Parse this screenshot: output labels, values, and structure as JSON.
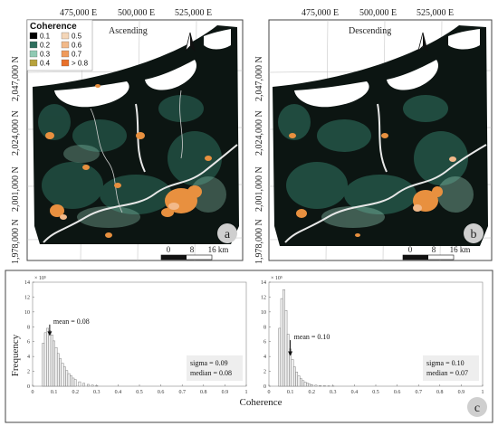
{
  "maps": [
    {
      "id": "a",
      "title": "Ascending",
      "panel_letter": "a",
      "x_ticks": [
        "475,000 E",
        "500,000 E",
        "525,000 E"
      ],
      "y_ticks": [
        "2,047,000 N",
        "2,024,000 N",
        "2,001,000 N",
        "1,978,000 N"
      ],
      "scale_labels": [
        "0",
        "8",
        "16 km"
      ]
    },
    {
      "id": "b",
      "title": "Descending",
      "panel_letter": "b",
      "x_ticks": [
        "475,000 E",
        "500,000 E",
        "525,000 E"
      ],
      "y_ticks": [
        "2,047,000 N",
        "2,024,000 N",
        "2,001,000 N",
        "1,978,000 N"
      ],
      "scale_labels": [
        "0",
        "8",
        "16 km"
      ]
    }
  ],
  "legend": {
    "title": "Coherence",
    "items": [
      {
        "label": "0.1",
        "color": "#000000"
      },
      {
        "label": "0.5",
        "color": "#f4d6b8"
      },
      {
        "label": "0.2",
        "color": "#2e6f5e"
      },
      {
        "label": "0.6",
        "color": "#f2b98a"
      },
      {
        "label": "0.3",
        "color": "#8fc9b3"
      },
      {
        "label": "0.7",
        "color": "#ef9a5a"
      },
      {
        "label": "0.4",
        "color": "#b7a23c"
      },
      {
        "label": "> 0.8",
        "color": "#e8702a"
      }
    ]
  },
  "colors": {
    "map_dark": "#0c1512",
    "coherence_green": "#2e6f5e",
    "coherence_orange": "#e8903f",
    "panel_badge": "#cfcfcf"
  },
  "chart_data": [
    {
      "type": "bar",
      "panel": "c-left",
      "ylabel": "Frequency",
      "y_exponent": "× 10⁵",
      "xlim": [
        0,
        1
      ],
      "ylim": [
        0,
        14
      ],
      "x_ticks": [
        "0",
        "0.1",
        "0.2",
        "0.3",
        "0.4",
        "0.5",
        "0.6",
        "0.7",
        "0.8",
        "0.9",
        "1"
      ],
      "y_ticks": [
        "0",
        "2",
        "4",
        "6",
        "8",
        "10",
        "12",
        "14"
      ],
      "bin_centers": [
        0.05,
        0.06,
        0.07,
        0.08,
        0.09,
        0.1,
        0.11,
        0.12,
        0.13,
        0.14,
        0.15,
        0.16,
        0.17,
        0.18,
        0.19,
        0.2,
        0.22,
        0.24,
        0.26,
        0.28,
        0.3
      ],
      "values": [
        5.8,
        7.2,
        7.8,
        7.5,
        6.9,
        6.1,
        5.2,
        4.4,
        3.7,
        3.1,
        2.6,
        2.1,
        1.7,
        1.4,
        1.1,
        0.9,
        0.6,
        0.4,
        0.25,
        0.15,
        0.08
      ],
      "mean_label": "mean = 0.08",
      "mean_value": 0.08,
      "stats": [
        "sigma =  0.09",
        "median = 0.08"
      ]
    },
    {
      "type": "bar",
      "panel": "c-right",
      "y_exponent": "× 10⁵",
      "xlim": [
        0,
        1
      ],
      "ylim": [
        0,
        14
      ],
      "x_ticks": [
        "0",
        "0.1",
        "0.2",
        "0.3",
        "0.4",
        "0.5",
        "0.6",
        "0.7",
        "0.8",
        "0.9",
        "1"
      ],
      "y_ticks": [
        "0",
        "2",
        "4",
        "6",
        "8",
        "10",
        "12",
        "14"
      ],
      "bin_centers": [
        0.05,
        0.06,
        0.07,
        0.08,
        0.09,
        0.1,
        0.11,
        0.12,
        0.13,
        0.14,
        0.15,
        0.16,
        0.17,
        0.18,
        0.19,
        0.2,
        0.22,
        0.24,
        0.26,
        0.28,
        0.3
      ],
      "values": [
        7.8,
        11.8,
        13.0,
        10.2,
        7.0,
        5.0,
        3.6,
        2.6,
        1.9,
        1.4,
        1.0,
        0.75,
        0.55,
        0.4,
        0.3,
        0.22,
        0.14,
        0.09,
        0.06,
        0.04,
        0.02
      ],
      "mean_label": "mean = 0.10",
      "mean_value": 0.1,
      "stats": [
        "sigma = 0.10",
        "median = 0.07"
      ]
    }
  ],
  "xlabel": "Coherence",
  "chart_panel_letter": "c"
}
